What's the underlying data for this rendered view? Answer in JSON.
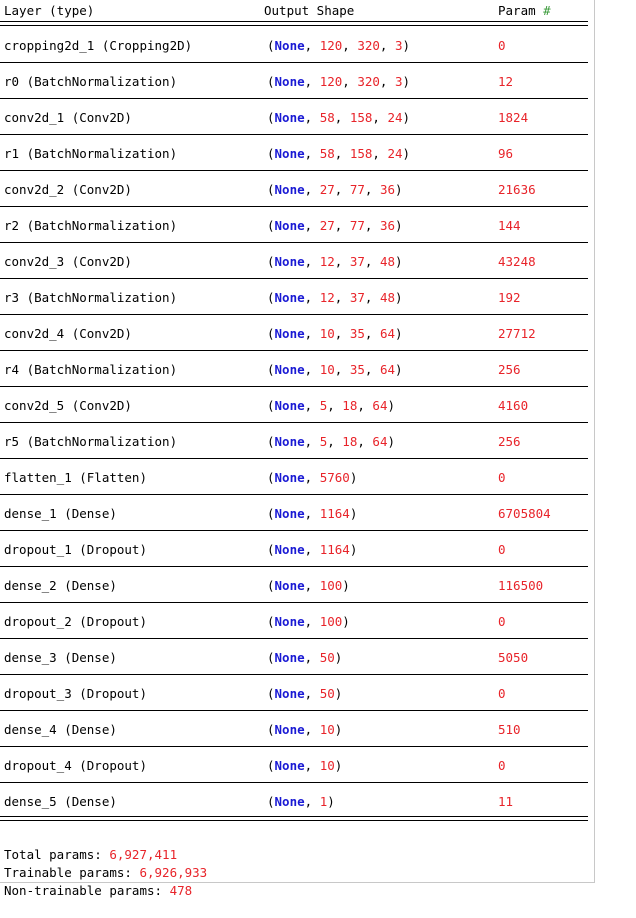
{
  "header": {
    "layer": "Layer (type)",
    "shape": "Output Shape",
    "param_label": "Param ",
    "param_hash": "#"
  },
  "rows": [
    {
      "layer": "cropping2d_1 (Cropping2D)",
      "shape": [
        "120",
        "320",
        "3"
      ],
      "param": "0"
    },
    {
      "layer": "r0 (BatchNormalization)",
      "shape": [
        "120",
        "320",
        "3"
      ],
      "param": "12"
    },
    {
      "layer": "conv2d_1 (Conv2D)",
      "shape": [
        "58",
        "158",
        "24"
      ],
      "param": "1824"
    },
    {
      "layer": "r1 (BatchNormalization)",
      "shape": [
        "58",
        "158",
        "24"
      ],
      "param": "96"
    },
    {
      "layer": "conv2d_2 (Conv2D)",
      "shape": [
        "27",
        "77",
        "36"
      ],
      "param": "21636"
    },
    {
      "layer": "r2 (BatchNormalization)",
      "shape": [
        "27",
        "77",
        "36"
      ],
      "param": "144"
    },
    {
      "layer": "conv2d_3 (Conv2D)",
      "shape": [
        "12",
        "37",
        "48"
      ],
      "param": "43248"
    },
    {
      "layer": "r3 (BatchNormalization)",
      "shape": [
        "12",
        "37",
        "48"
      ],
      "param": "192"
    },
    {
      "layer": "conv2d_4 (Conv2D)",
      "shape": [
        "10",
        "35",
        "64"
      ],
      "param": "27712"
    },
    {
      "layer": "r4 (BatchNormalization)",
      "shape": [
        "10",
        "35",
        "64"
      ],
      "param": "256"
    },
    {
      "layer": "conv2d_5 (Conv2D)",
      "shape": [
        "5",
        "18",
        "64"
      ],
      "param": "4160"
    },
    {
      "layer": "r5 (BatchNormalization)",
      "shape": [
        "5",
        "18",
        "64"
      ],
      "param": "256"
    },
    {
      "layer": "flatten_1 (Flatten)",
      "shape": [
        "5760"
      ],
      "param": "0"
    },
    {
      "layer": "dense_1 (Dense)",
      "shape": [
        "1164"
      ],
      "param": "6705804"
    },
    {
      "layer": "dropout_1 (Dropout)",
      "shape": [
        "1164"
      ],
      "param": "0"
    },
    {
      "layer": "dense_2 (Dense)",
      "shape": [
        "100"
      ],
      "param": "116500"
    },
    {
      "layer": "dropout_2 (Dropout)",
      "shape": [
        "100"
      ],
      "param": "0"
    },
    {
      "layer": "dense_3 (Dense)",
      "shape": [
        "50"
      ],
      "param": "5050"
    },
    {
      "layer": "dropout_3 (Dropout)",
      "shape": [
        "50"
      ],
      "param": "0"
    },
    {
      "layer": "dense_4 (Dense)",
      "shape": [
        "10"
      ],
      "param": "510"
    },
    {
      "layer": "dropout_4 (Dropout)",
      "shape": [
        "10"
      ],
      "param": "0"
    },
    {
      "layer": "dense_5 (Dense)",
      "shape": [
        "1"
      ],
      "param": "11"
    }
  ],
  "none_keyword": "None",
  "totals": {
    "total_label": "Total params: ",
    "total_value": "6,927,411",
    "trainable_label": "Trainable params: ",
    "trainable_value": "6,926,933",
    "non_trainable_label": "Non-trainable params: ",
    "non_trainable_value": "478"
  },
  "colors": {
    "keyword": "#1a1ad4",
    "number": "#e8242a",
    "text": "#000000"
  }
}
